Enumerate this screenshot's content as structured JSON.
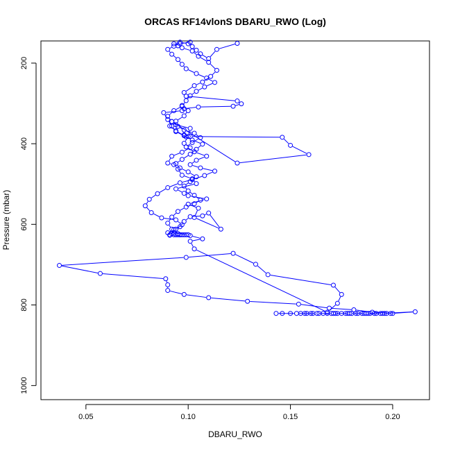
{
  "chart_data": {
    "type": "scatter",
    "title": "ORCAS RF14vlonS DBARU_RWO (Log)",
    "xlabel": "DBARU_RWO",
    "ylabel": "Pressure (mbar)",
    "xlim": [
      0.028,
      0.218
    ],
    "ylim": [
      1035,
      145
    ],
    "y_reversed": true,
    "x_ticks": [
      0.05,
      0.1,
      0.15,
      0.2
    ],
    "x_tick_labels": [
      "0.05",
      "0.10",
      "0.15",
      "0.20"
    ],
    "y_ticks": [
      200,
      400,
      600,
      800,
      1000
    ],
    "y_tick_labels": [
      "200",
      "400",
      "600",
      "800",
      "1000"
    ],
    "grid": false,
    "series": [
      {
        "color": "#0000ff",
        "marker": "open-circle",
        "connected": true,
        "x": [
          0.143,
          0.153,
          0.163,
          0.171,
          0.179,
          0.187,
          0.195,
          0.211,
          0.2,
          0.19,
          0.181,
          0.169,
          0.154,
          0.129,
          0.11,
          0.098,
          0.09,
          0.09,
          0.089,
          0.057,
          0.037,
          0.099,
          0.122,
          0.133,
          0.139,
          0.171,
          0.175,
          0.173,
          0.168,
          0.103,
          0.101,
          0.107,
          0.101,
          0.1,
          0.095,
          0.093,
          0.092,
          0.09,
          0.093,
          0.096,
          0.098,
          0.101,
          0.107,
          0.11,
          0.116,
          0.103,
          0.105,
          0.1,
          0.109,
          0.1,
          0.098,
          0.094,
          0.104,
          0.102,
          0.097,
          0.095,
          0.093,
          0.09,
          0.092,
          0.097,
          0.101,
          0.098,
          0.1,
          0.101,
          0.094,
          0.092,
          0.124,
          0.159,
          0.15,
          0.146,
          0.101,
          0.098,
          0.099,
          0.094,
          0.092,
          0.09,
          0.088,
          0.097,
          0.098,
          0.105,
          0.122,
          0.126,
          0.124,
          0.099,
          0.098,
          0.103,
          0.107,
          0.111,
          0.114,
          0.11,
          0.105,
          0.102,
          0.097,
          0.095,
          0.093,
          0.096,
          0.1,
          0.102,
          0.104,
          0.106,
          0.11,
          0.114,
          0.124
        ],
        "y": [
          821,
          821,
          821,
          821,
          821,
          821,
          821,
          817,
          821,
          818,
          812,
          808,
          798,
          791,
          782,
          774,
          764,
          750,
          735,
          722,
          702,
          682,
          672,
          699,
          725,
          751,
          774,
          796,
          818,
          661,
          642,
          636,
          628,
          626,
          623,
          622,
          623,
          621,
          613,
          606,
          593,
          581,
          579,
          572,
          612,
          583,
          560,
          550,
          537,
          529,
          523,
          512,
          499,
          487,
          478,
          463,
          452,
          448,
          431,
          421,
          410,
          399,
          382,
          362,
          353,
          345,
          448,
          427,
          404,
          384,
          382,
          378,
          383,
          370,
          356,
          340,
          323,
          318,
          313,
          309,
          307,
          301,
          294,
          282,
          273,
          256,
          247,
          233,
          218,
          198,
          183,
          170,
          162,
          157,
          152,
          148,
          152,
          159,
          168,
          177,
          189,
          166,
          151
        ]
      },
      {
        "color": "#0000ff",
        "marker": "open-circle",
        "connected": true,
        "x": [
          0.091,
          0.094,
          0.097,
          0.094,
          0.087,
          0.082,
          0.079,
          0.081,
          0.085,
          0.09,
          0.096,
          0.102,
          0.108,
          0.113,
          0.106,
          0.101,
          0.104,
          0.109,
          0.103,
          0.099,
          0.102,
          0.106,
          0.103,
          0.098,
          0.095,
          0.092,
          0.09,
          0.093,
          0.097,
          0.099,
          0.101,
          0.104,
          0.108,
          0.113,
          0.109,
          0.104,
          0.099,
          0.097,
          0.095,
          0.092,
          0.09,
          0.093,
          0.096,
          0.101
        ],
        "y": [
          627,
          612,
          601,
          589,
          584,
          571,
          554,
          538,
          524,
          509,
          497,
          489,
          479,
          468,
          460,
          452,
          441,
          431,
          420,
          408,
          397,
          385,
          374,
          366,
          357,
          345,
          332,
          318,
          307,
          293,
          281,
          270,
          259,
          248,
          237,
          226,
          214,
          203,
          191,
          178,
          166,
          158,
          152,
          148
        ]
      },
      {
        "color": "#0000ff",
        "marker": "open-circle",
        "connected": true,
        "x": [
          0.096,
          0.092,
          0.09,
          0.092,
          0.095,
          0.099,
          0.103,
          0.106,
          0.103,
          0.1,
          0.098,
          0.101,
          0.104,
          0.1,
          0.096,
          0.094,
          0.097,
          0.101,
          0.104,
          0.107,
          0.102,
          0.098,
          0.094,
          0.091,
          0.094,
          0.098,
          0.1,
          0.097
        ],
        "y": [
          626,
          612,
          597,
          582,
          568,
          557,
          549,
          540,
          528,
          517,
          505,
          494,
          482,
          470,
          460,
          449,
          439,
          426,
          414,
          401,
          391,
          380,
          368,
          356,
          344,
          331,
          318,
          305
        ]
      },
      {
        "color": "#0000ff",
        "marker": "open-circle",
        "connected": false,
        "x": [
          0.146,
          0.15,
          0.155,
          0.157,
          0.158,
          0.16,
          0.161,
          0.164,
          0.166,
          0.168,
          0.17,
          0.172,
          0.173,
          0.175,
          0.177,
          0.178,
          0.18,
          0.182,
          0.183,
          0.185,
          0.186,
          0.188,
          0.189,
          0.191,
          0.192,
          0.194,
          0.196,
          0.197,
          0.199,
          0.093,
          0.094,
          0.095,
          0.096,
          0.097,
          0.098,
          0.099,
          0.091
        ],
        "y": [
          821,
          821,
          821,
          821,
          821,
          821,
          821,
          821,
          821,
          821,
          821,
          821,
          821,
          821,
          821,
          821,
          821,
          821,
          821,
          821,
          821,
          821,
          821,
          821,
          821,
          821,
          821,
          821,
          821,
          626,
          626,
          626,
          626,
          626,
          626,
          626,
          626
        ]
      }
    ]
  }
}
